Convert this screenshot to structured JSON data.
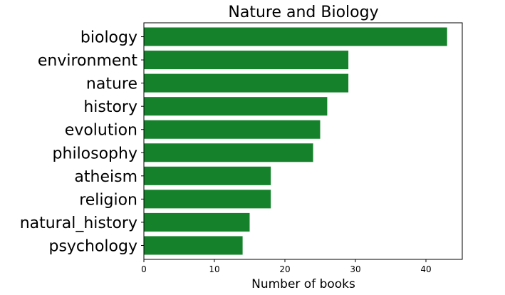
{
  "chart_data": {
    "type": "bar",
    "orientation": "horizontal",
    "title": "Nature and Biology",
    "xlabel": "Number of books",
    "ylabel": "",
    "categories": [
      "biology",
      "environment",
      "nature",
      "history",
      "evolution",
      "philosophy",
      "atheism",
      "religion",
      "natural_history",
      "psychology"
    ],
    "values": [
      43,
      29,
      29,
      26,
      25,
      24,
      18,
      18,
      15,
      14
    ],
    "xlim": [
      0,
      45.15
    ],
    "xticks": [
      0,
      10,
      20,
      30,
      40
    ],
    "grid": false,
    "bar_color": "#15822b"
  }
}
